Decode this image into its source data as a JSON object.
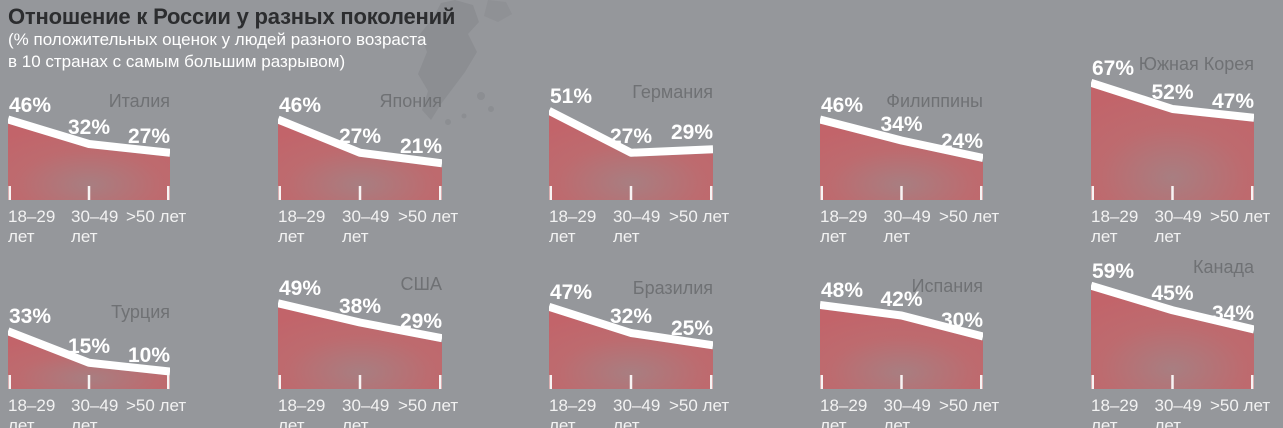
{
  "header": {
    "title": "Отношение к России у разных поколений",
    "subtitle_lines": [
      "(% положительных оценок у людей разного возраста",
      "в 10 странах с самым большим разрывом)"
    ]
  },
  "colors": {
    "background": "#95979b",
    "area_red": "#c2646a",
    "area_red_mid": "#bd6b6f",
    "area_gray_red": "#a87e81",
    "line": "#ffffff",
    "title_text": "#2c2d2f",
    "subtitle_text": "#ffffff",
    "country_text": "#6f7174",
    "axis_text": "#f2f2f2",
    "tick": "#f7f4f4",
    "map_silhouette": "#8a8c90"
  },
  "chart_data": {
    "type": "area",
    "title": "Отношение к России у разных поколений",
    "subtitle": "(% положительных оценок у людей разного возраста в 10 странах с самым большим разрывом)",
    "layout_hint": "small multiples, 5 columns x 2 rows, shared x axis categories, no grid, no legend, value labels above each point",
    "unit": "%",
    "ylim": [
      0,
      100
    ],
    "categories": [
      "18–29 лет",
      "30–49 лет",
      ">50 лет"
    ],
    "series": [
      {
        "name": "Италия",
        "values": [
          46,
          32,
          27
        ]
      },
      {
        "name": "Япония",
        "values": [
          46,
          27,
          21
        ]
      },
      {
        "name": "Германия",
        "values": [
          51,
          27,
          29
        ]
      },
      {
        "name": "Филиппины",
        "values": [
          46,
          34,
          24
        ]
      },
      {
        "name": "Южная Корея",
        "values": [
          67,
          52,
          47
        ]
      },
      {
        "name": "Турция",
        "values": [
          33,
          15,
          10
        ]
      },
      {
        "name": "США",
        "values": [
          49,
          38,
          29
        ]
      },
      {
        "name": "Бразилия",
        "values": [
          47,
          32,
          25
        ]
      },
      {
        "name": "Испания",
        "values": [
          48,
          42,
          30
        ]
      },
      {
        "name": "Канада",
        "values": [
          59,
          45,
          34
        ]
      }
    ]
  }
}
